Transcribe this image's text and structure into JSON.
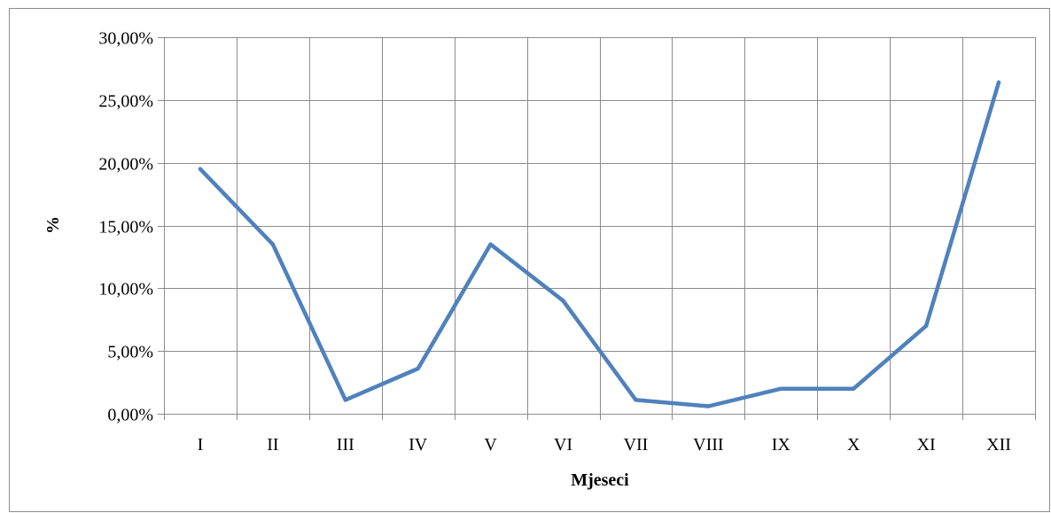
{
  "chart_data": {
    "type": "line",
    "title": "",
    "xlabel": "Mjeseci",
    "ylabel": "%",
    "categories": [
      "I",
      "II",
      "III",
      "IV",
      "V",
      "VI",
      "VII",
      "VIII",
      "IX",
      "X",
      "XI",
      "XII"
    ],
    "series": [
      {
        "values": [
          19.5,
          13.5,
          1.1,
          3.6,
          13.5,
          9.0,
          1.1,
          0.6,
          2.0,
          2.0,
          7.0,
          26.4
        ],
        "color": "#4f81bd"
      }
    ],
    "ylim": [
      0,
      30
    ],
    "y_ticks": [
      0,
      5,
      10,
      15,
      20,
      25,
      30
    ],
    "y_tick_labels": [
      "0,00%",
      "5,00%",
      "10,00%",
      "15,00%",
      "20,00%",
      "25,00%",
      "30,00%"
    ],
    "grid": true,
    "legend": "none",
    "colors": {
      "grid": "#8c8c8c",
      "frame": "#8c8c8c"
    }
  }
}
